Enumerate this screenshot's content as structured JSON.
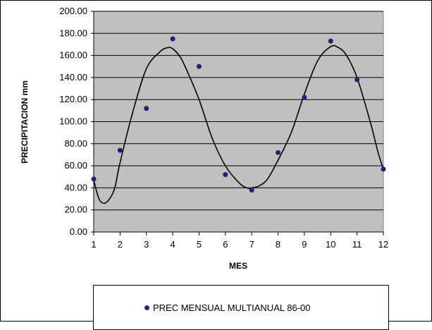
{
  "chart_data": {
    "type": "scatter",
    "title": "",
    "xlabel": "MES",
    "ylabel": "PRECIPITACION mm",
    "xlim": [
      1,
      12
    ],
    "ylim": [
      0,
      200
    ],
    "x_ticks": [
      "1",
      "2",
      "3",
      "4",
      "5",
      "6",
      "7",
      "8",
      "9",
      "10",
      "11",
      "12"
    ],
    "y_ticks": [
      "0.00",
      "20.00",
      "40.00",
      "60.00",
      "80.00",
      "100.00",
      "120.00",
      "140.00",
      "160.00",
      "180.00",
      "200.00"
    ],
    "grid": "horizontal",
    "plot_background": "#c0c0c0",
    "marker_color": "#1a237e",
    "line_color": "#000000",
    "legend_position": "bottom",
    "series": [
      {
        "name": "PREC MENSUAL MULTIANUAL 86-00",
        "type": "scatter",
        "x": [
          1,
          2,
          3,
          4,
          5,
          6,
          7,
          8,
          9,
          10,
          11,
          12
        ],
        "y": [
          48,
          74,
          112,
          175,
          150,
          52,
          38,
          72,
          122,
          173,
          138,
          57
        ]
      },
      {
        "type": "line",
        "smooth": true,
        "x": [
          1,
          1.2,
          1.4,
          1.6,
          1.8,
          2,
          2.5,
          3,
          3.5,
          3.8,
          4,
          4.3,
          4.6,
          5,
          5.5,
          6,
          6.5,
          6.8,
          7,
          7.3,
          7.6,
          8,
          8.5,
          9,
          9.5,
          10,
          10.3,
          10.6,
          11,
          11.5,
          11.8,
          12
        ],
        "y": [
          47,
          30,
          26,
          30,
          40,
          63,
          110,
          148,
          163,
          167,
          166,
          158,
          143,
          120,
          85,
          60,
          45,
          40,
          40,
          42,
          48,
          65,
          90,
          125,
          155,
          168,
          167,
          160,
          140,
          100,
          72,
          57
        ]
      }
    ]
  }
}
